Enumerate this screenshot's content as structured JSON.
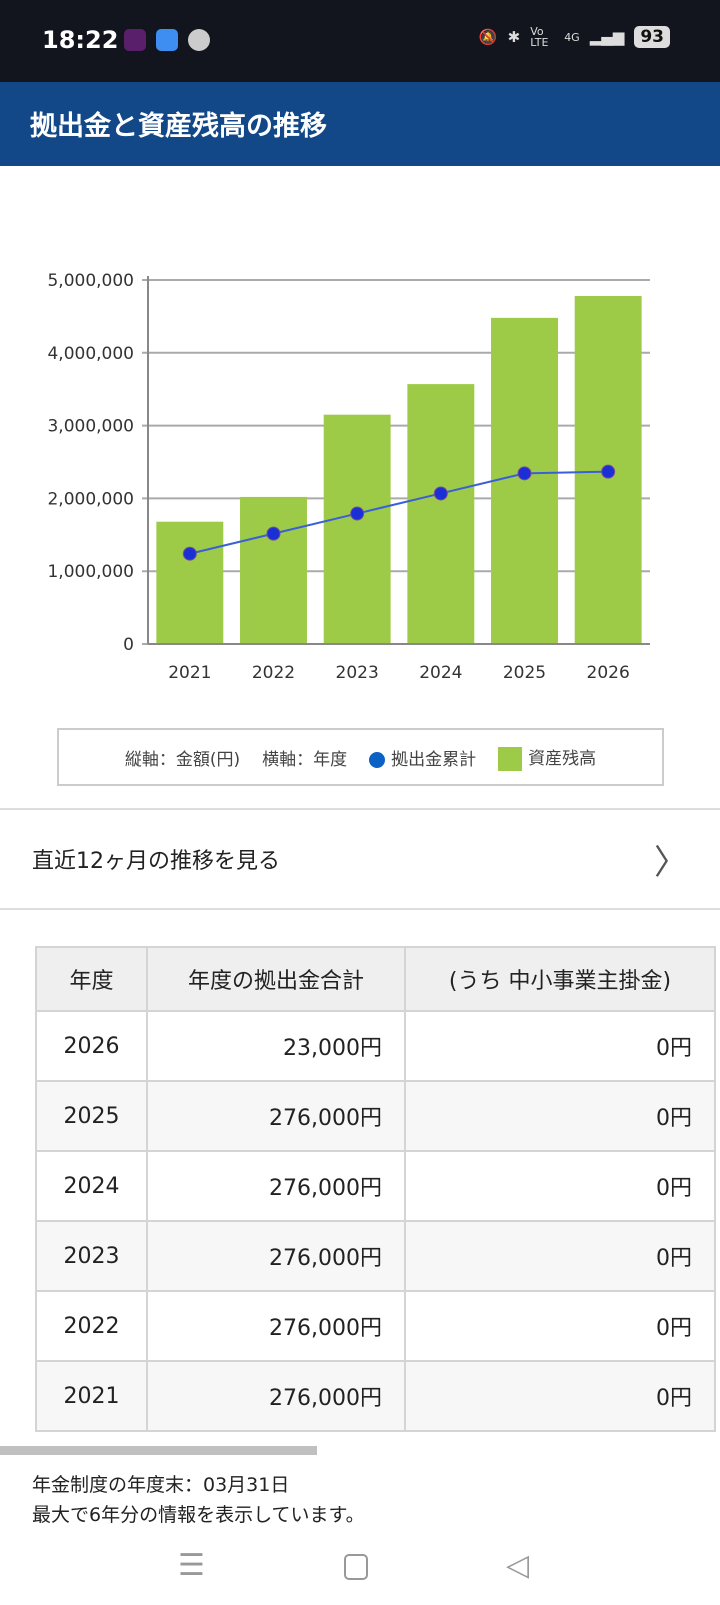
{
  "status_bar": {
    "time": "18:22",
    "network": "4G",
    "volte": "Vo LTE",
    "battery": "93"
  },
  "header": {
    "title": "拠出金と資産残高の推移"
  },
  "chart_data": {
    "type": "bar",
    "categories": [
      "2021",
      "2022",
      "2023",
      "2024",
      "2025",
      "2026"
    ],
    "series": [
      {
        "name": "資産残高",
        "type": "bar",
        "color": "#9dcb48",
        "values": [
          1680000,
          2020000,
          3150000,
          3570000,
          4480000,
          4780000
        ]
      },
      {
        "name": "拠出金累計",
        "type": "line",
        "color": "#0b62c4",
        "values": [
          1240000,
          1516000,
          1792000,
          2068000,
          2344000,
          2367000
        ]
      }
    ],
    "yticks": [
      "0",
      "1,000,000",
      "2,000,000",
      "3,000,000",
      "4,000,000",
      "5,000,000"
    ],
    "ylim": [
      0,
      5000000
    ],
    "legend": {
      "yaxis": "縦軸：金額(円)",
      "xaxis": "横軸：年度",
      "line": "拠出金累計",
      "bar": "資産残高"
    }
  },
  "link": {
    "label": "直近12ヶ月の推移を見る"
  },
  "table": {
    "headers": [
      "年度",
      "年度の拠出金合計",
      "(うち 中小事業主掛金)"
    ],
    "rows": [
      [
        "2026",
        "23,000円",
        "0円"
      ],
      [
        "2025",
        "276,000円",
        "0円"
      ],
      [
        "2024",
        "276,000円",
        "0円"
      ],
      [
        "2023",
        "276,000円",
        "0円"
      ],
      [
        "2022",
        "276,000円",
        "0円"
      ],
      [
        "2021",
        "276,000円",
        "0円"
      ]
    ]
  },
  "notes": [
    "年金制度の年度末：03月31日",
    "最大で6年分の情報を表示しています。"
  ]
}
